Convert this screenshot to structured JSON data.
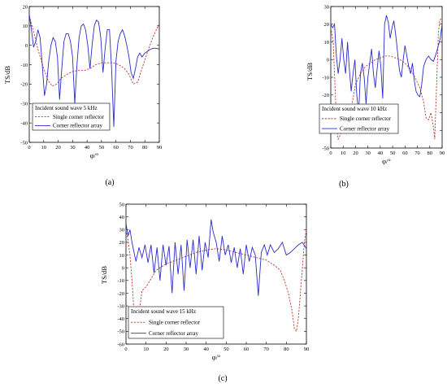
{
  "chart_data": [
    {
      "type": "line",
      "caption": "(a)",
      "ylabel": "TS/dB",
      "xlabel": "φ/°",
      "xlim": [
        0,
        90
      ],
      "ylim": [
        -50,
        20
      ],
      "xticks": [
        "0",
        "10",
        "20",
        "30",
        "40",
        "50",
        "60",
        "70",
        "80",
        "90"
      ],
      "yticks": [
        "20",
        "10",
        "0",
        "-10",
        "-20",
        "-30",
        "-40",
        "-50"
      ],
      "legend": {
        "title": "Incident sound wave 5 kHz",
        "position": "bottom-left",
        "entries": [
          "Single corner reflector",
          "Corner reflector array"
        ]
      },
      "series": [
        {
          "name": "Single corner reflector",
          "color": "#c0392b",
          "dash": "dashed",
          "x": [
            0,
            2,
            4,
            6,
            8,
            10,
            13,
            16,
            19,
            22,
            26,
            30,
            34,
            38,
            42,
            46,
            50,
            54,
            58,
            62,
            66,
            69,
            72,
            75,
            78,
            82,
            86,
            90
          ],
          "y": [
            15,
            10,
            4,
            -2,
            -7,
            -12,
            -18,
            -21,
            -20,
            -17,
            -15,
            -13.5,
            -13,
            -13,
            -12,
            -10,
            -9,
            -9,
            -9,
            -10,
            -12,
            -15,
            -20,
            -19,
            -12,
            -3,
            5,
            11
          ]
        },
        {
          "name": "Corner reflector array",
          "color": "#2b2bcc",
          "dash": "solid",
          "x": [
            0,
            1.5,
            3,
            4.5,
            6,
            7.5,
            9,
            10.5,
            12,
            13.5,
            15,
            16.5,
            18,
            19.5,
            21,
            22.5,
            24,
            25.5,
            27,
            28.5,
            30,
            31.5,
            33,
            34.5,
            36,
            37.5,
            39,
            40.5,
            42,
            43.5,
            45,
            46.5,
            48,
            49.5,
            51,
            52.5,
            54,
            55.5,
            57,
            58.5,
            60,
            61.5,
            63,
            64.5,
            66,
            67.5,
            69,
            70.5,
            72,
            73.5,
            75,
            76.5,
            78,
            80,
            82,
            84,
            86,
            88,
            90
          ],
          "y": [
            16,
            8,
            -1,
            2,
            8,
            4,
            -10,
            -26,
            -20,
            -8,
            0,
            4,
            2,
            -6,
            -28,
            -12,
            2,
            6,
            6,
            2,
            -6,
            -30,
            -10,
            4,
            10,
            11,
            8,
            0,
            -12,
            0,
            10,
            13,
            12,
            4,
            -14,
            -2,
            8,
            8,
            -12,
            -42,
            -8,
            2,
            6,
            8,
            5,
            0,
            -6,
            -14,
            -17,
            -12,
            -6,
            -4,
            -6,
            -4,
            -3,
            -2,
            -1.5,
            -1.5,
            -2
          ]
        }
      ]
    },
    {
      "type": "line",
      "caption": "(b)",
      "ylabel": "TS/dB",
      "xlabel": "φ/°",
      "xlim": [
        0,
        90
      ],
      "ylim": [
        -50,
        30
      ],
      "xticks": [
        "0",
        "10",
        "20",
        "30",
        "40",
        "50",
        "60",
        "70",
        "80",
        "90"
      ],
      "yticks": [
        "30",
        "20",
        "10",
        "0",
        "-10",
        "-20",
        "-30",
        "-40",
        "-50"
      ],
      "legend": {
        "title": "Incident sound wave 10 kHz",
        "position": "bottom-left",
        "entries": [
          "Single corner reflector",
          "Corner reflector array"
        ]
      },
      "series": [
        {
          "name": "Single corner reflector",
          "color": "#c0392b",
          "dash": "dashed",
          "x": [
            0,
            2,
            4,
            5,
            6,
            8,
            10,
            12,
            14,
            16,
            18,
            20,
            24,
            28,
            32,
            36,
            40,
            44,
            48,
            52,
            56,
            60,
            64,
            68,
            72,
            75,
            77,
            79,
            81,
            83,
            84,
            85,
            86,
            87,
            88,
            90
          ],
          "y": [
            18,
            10,
            -25,
            -40,
            -45,
            -42,
            -35,
            -30,
            -32,
            -28,
            -22,
            -14,
            -8,
            -4,
            -2,
            0,
            1,
            2,
            2,
            1,
            0,
            -2,
            -5,
            -10,
            -16,
            -24,
            -33,
            -34,
            -30,
            -38,
            -45,
            -25,
            -5,
            15,
            22,
            24
          ]
        },
        {
          "name": "Corner reflector array",
          "color": "#2b2bcc",
          "dash": "solid",
          "x": [
            0,
            1.5,
            3,
            4.5,
            6,
            7.5,
            9,
            10.5,
            12,
            13.5,
            15,
            16.5,
            18,
            19.5,
            21,
            22.5,
            24,
            25.5,
            27,
            28.5,
            30,
            31.5,
            33,
            34.5,
            36,
            37.5,
            39,
            40.5,
            42,
            43.5,
            45,
            46.5,
            48,
            49.5,
            51,
            52.5,
            54,
            55.5,
            57,
            58.5,
            60,
            61.5,
            63,
            64.5,
            66,
            67.5,
            69,
            70.5,
            72,
            73.5,
            75,
            77,
            79,
            81,
            83,
            85,
            87,
            88.5,
            90
          ],
          "y": [
            20,
            18,
            20,
            2,
            -8,
            0,
            12,
            0,
            -8,
            10,
            -5,
            -18,
            -8,
            0,
            -20,
            -30,
            -8,
            -2,
            -10,
            -25,
            -10,
            -2,
            6,
            -8,
            -16,
            -5,
            5,
            -4,
            -22,
            20,
            25,
            21,
            12,
            18,
            22,
            14,
            4,
            -6,
            -10,
            0,
            8,
            2,
            -4,
            -8,
            -2,
            -12,
            -18,
            -20,
            -21,
            -14,
            -4,
            0,
            2,
            0,
            -1,
            3,
            8,
            12,
            20
          ]
        }
      ]
    },
    {
      "type": "line",
      "caption": "(c)",
      "ylabel": "TS/dB",
      "xlabel": "φ/°",
      "xlim": [
        0,
        90
      ],
      "ylim": [
        -60,
        50
      ],
      "xticks": [
        "0",
        "10",
        "20",
        "30",
        "40",
        "50",
        "60",
        "70",
        "80",
        "90"
      ],
      "yticks": [
        "50",
        "40",
        "30",
        "20",
        "10",
        "0",
        "-10",
        "-20",
        "-30",
        "-40",
        "-50",
        "-60"
      ],
      "legend": {
        "title": "Incident sound wave 15 kHz",
        "position": "bottom-left",
        "entries": [
          "Single corner reflector",
          "Corner reflector array"
        ]
      },
      "series": [
        {
          "name": "Single corner reflector",
          "color": "#c0392b",
          "dash": "dashed",
          "x": [
            0,
            1,
            2,
            3,
            4,
            5,
            6,
            7,
            8,
            10,
            12,
            15,
            20,
            25,
            30,
            35,
            40,
            45,
            50,
            55,
            60,
            65,
            70,
            74,
            77,
            79,
            81,
            83,
            84,
            85,
            86,
            87,
            88,
            89,
            90
          ],
          "y": [
            30,
            22,
            10,
            -10,
            -35,
            -48,
            -40,
            -30,
            -18,
            -15,
            -10,
            -2,
            3,
            6,
            9,
            12,
            14,
            15,
            14,
            12,
            10,
            8,
            6,
            2,
            -2,
            -10,
            -20,
            -35,
            -48,
            -50,
            -40,
            -20,
            0,
            20,
            30
          ]
        },
        {
          "name": "Corner reflector array",
          "color": "#2b2bcc",
          "dash": "solid",
          "x": [
            0,
            1,
            2,
            3,
            4,
            5,
            6.5,
            8,
            9.5,
            11,
            12.5,
            14,
            15.5,
            17,
            18.5,
            20,
            21.5,
            23,
            24.5,
            26,
            27.5,
            29,
            30.5,
            32,
            33.5,
            35,
            36.5,
            38,
            39.5,
            41,
            42.5,
            43.5,
            45,
            46.5,
            48,
            49.5,
            51,
            52.5,
            54,
            55.5,
            57,
            58.5,
            60,
            61.5,
            63,
            64.5,
            66,
            67.5,
            69,
            70.5,
            72,
            74,
            76,
            78,
            80,
            82,
            84,
            86,
            88,
            90
          ],
          "y": [
            35,
            25,
            30,
            20,
            12,
            5,
            16,
            8,
            18,
            4,
            18,
            -4,
            16,
            -10,
            18,
            2,
            17,
            -20,
            20,
            -5,
            18,
            -18,
            22,
            0,
            22,
            -5,
            25,
            -2,
            20,
            8,
            38,
            28,
            20,
            5,
            25,
            10,
            18,
            4,
            16,
            0,
            15,
            -5,
            18,
            5,
            16,
            10,
            -22,
            12,
            18,
            10,
            18,
            12,
            15,
            20,
            10,
            12,
            15,
            18,
            20,
            15
          ]
        }
      ]
    }
  ]
}
